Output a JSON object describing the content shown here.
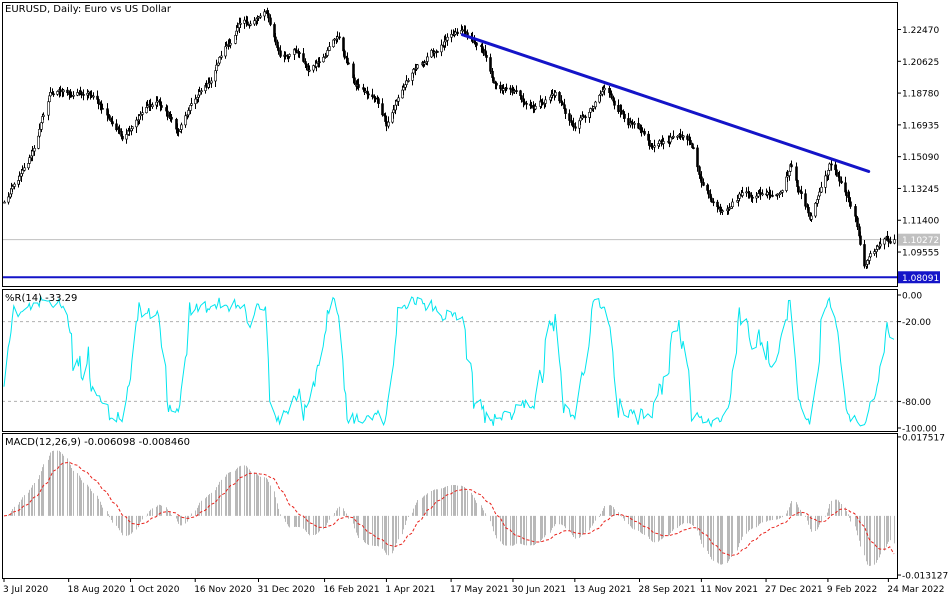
{
  "chart_data": [
    {
      "type": "candlestick",
      "title": "EURUSD, Daily:  Euro vs US Dollar",
      "panel": "price",
      "ylim": [
        1.077,
        1.2395
      ],
      "y_ticks": [
        "1.22470",
        "1.20625",
        "1.18780",
        "1.16935",
        "1.15090",
        "1.13245",
        "1.11400",
        "1.09555"
      ],
      "y_tick_values": [
        1.2247,
        1.20625,
        1.1878,
        1.16935,
        1.1509,
        1.13245,
        1.114,
        1.09555
      ],
      "current_price": {
        "label": "1.10272",
        "value": 1.10272
      },
      "support_line": {
        "label": "1.08091",
        "value": 1.08091
      },
      "trendline": {
        "from": {
          "date": "2021-05-25",
          "value": 1.2217
        },
        "to": {
          "date": "2022-03-10",
          "value": 1.1423
        }
      },
      "close_keypoints": [
        [
          "2020-07-03",
          1.124
        ],
        [
          "2020-07-20",
          1.1455
        ],
        [
          "2020-08-05",
          1.188
        ],
        [
          "2020-08-18",
          1.188
        ],
        [
          "2020-09-01",
          1.1865
        ],
        [
          "2020-09-10",
          1.18
        ],
        [
          "2020-09-25",
          1.163
        ],
        [
          "2020-10-05",
          1.1745
        ],
        [
          "2020-10-20",
          1.1835
        ],
        [
          "2020-11-04",
          1.165
        ],
        [
          "2020-11-15",
          1.183
        ],
        [
          "2020-11-25",
          1.192
        ],
        [
          "2020-12-05",
          1.2115
        ],
        [
          "2020-12-17",
          1.2255
        ],
        [
          "2021-01-06",
          1.2335
        ],
        [
          "2021-01-15",
          1.2095
        ],
        [
          "2021-01-25",
          1.213
        ],
        [
          "2021-02-05",
          1.2005
        ],
        [
          "2021-02-16",
          1.2125
        ],
        [
          "2021-02-25",
          1.2215
        ],
        [
          "2021-03-10",
          1.192
        ],
        [
          "2021-03-25",
          1.183
        ],
        [
          "2021-04-01",
          1.171
        ],
        [
          "2021-04-15",
          1.195
        ],
        [
          "2021-05-01",
          1.209
        ],
        [
          "2021-05-10",
          1.2155
        ],
        [
          "2021-05-25",
          1.2225
        ],
        [
          "2021-06-07",
          1.214
        ],
        [
          "2021-06-18",
          1.191
        ],
        [
          "2021-07-01",
          1.187
        ],
        [
          "2021-07-15",
          1.181
        ],
        [
          "2021-07-30",
          1.188
        ],
        [
          "2021-08-12",
          1.168
        ],
        [
          "2021-08-25",
          1.178
        ],
        [
          "2021-09-03",
          1.1895
        ],
        [
          "2021-09-20",
          1.1725
        ],
        [
          "2021-10-06",
          1.155
        ],
        [
          "2021-10-25",
          1.1645
        ],
        [
          "2021-11-05",
          1.155
        ],
        [
          "2021-11-12",
          1.1335
        ],
        [
          "2021-11-24",
          1.1205
        ],
        [
          "2021-12-10",
          1.1305
        ],
        [
          "2021-12-20",
          1.1295
        ],
        [
          "2022-01-05",
          1.131
        ],
        [
          "2022-01-13",
          1.146
        ],
        [
          "2022-01-27",
          1.1155
        ],
        [
          "2022-02-10",
          1.146
        ],
        [
          "2022-02-20",
          1.1335
        ],
        [
          "2022-03-01",
          1.113
        ],
        [
          "2022-03-07",
          1.086
        ],
        [
          "2022-03-14",
          1.094
        ],
        [
          "2022-03-21",
          1.104
        ],
        [
          "2022-03-28",
          1.1027
        ]
      ]
    },
    {
      "type": "line",
      "title": "%R(14) -33.29",
      "panel": "williams_r",
      "ylim": [
        -100,
        0
      ],
      "y_ticks": [
        "0.00",
        "-20.00",
        "-80.00",
        "-100.00"
      ],
      "y_tick_values": [
        0,
        -20,
        -80,
        -100
      ],
      "levels": [
        -20,
        -80
      ],
      "last_value": -33.29,
      "color": "#00e5ee"
    },
    {
      "type": "bar+line",
      "title": "MACD(12,26,9) -0.006098 -0.008460",
      "panel": "macd",
      "ylim": [
        -0.01312,
        0.0175
      ],
      "y_ticks": [
        "0.017517",
        "-0.013127"
      ],
      "y_tick_values": [
        0.017517,
        -0.013127
      ],
      "series": [
        {
          "role": "histogram",
          "last": -0.006098,
          "color": "#b8b8b8"
        },
        {
          "role": "signal",
          "last": -0.00846,
          "color": "#e8231c"
        }
      ]
    }
  ],
  "x_axis": {
    "labels": [
      "3 Jul 2020",
      "18 Aug 2020",
      "1 Oct 2020",
      "16 Nov 2020",
      "31 Dec 2020",
      "16 Feb 2021",
      "1 Apr 2021",
      "17 May 2021",
      "30 Jun 2021",
      "13 Aug 2021",
      "28 Sep 2021",
      "11 Nov 2021",
      "27 Dec 2021",
      "9 Feb 2022",
      "24 Mar 2022"
    ]
  },
  "colors": {
    "background": "#ffffff",
    "frame": "#000000",
    "candles": "#000000",
    "trendline": "#1414c8",
    "support_line": "#1414c8",
    "price_line": "#c0c0c0",
    "wr_line": "#00e5ee",
    "macd_signal": "#e8231c",
    "macd_hist": "#b8b8b8"
  }
}
